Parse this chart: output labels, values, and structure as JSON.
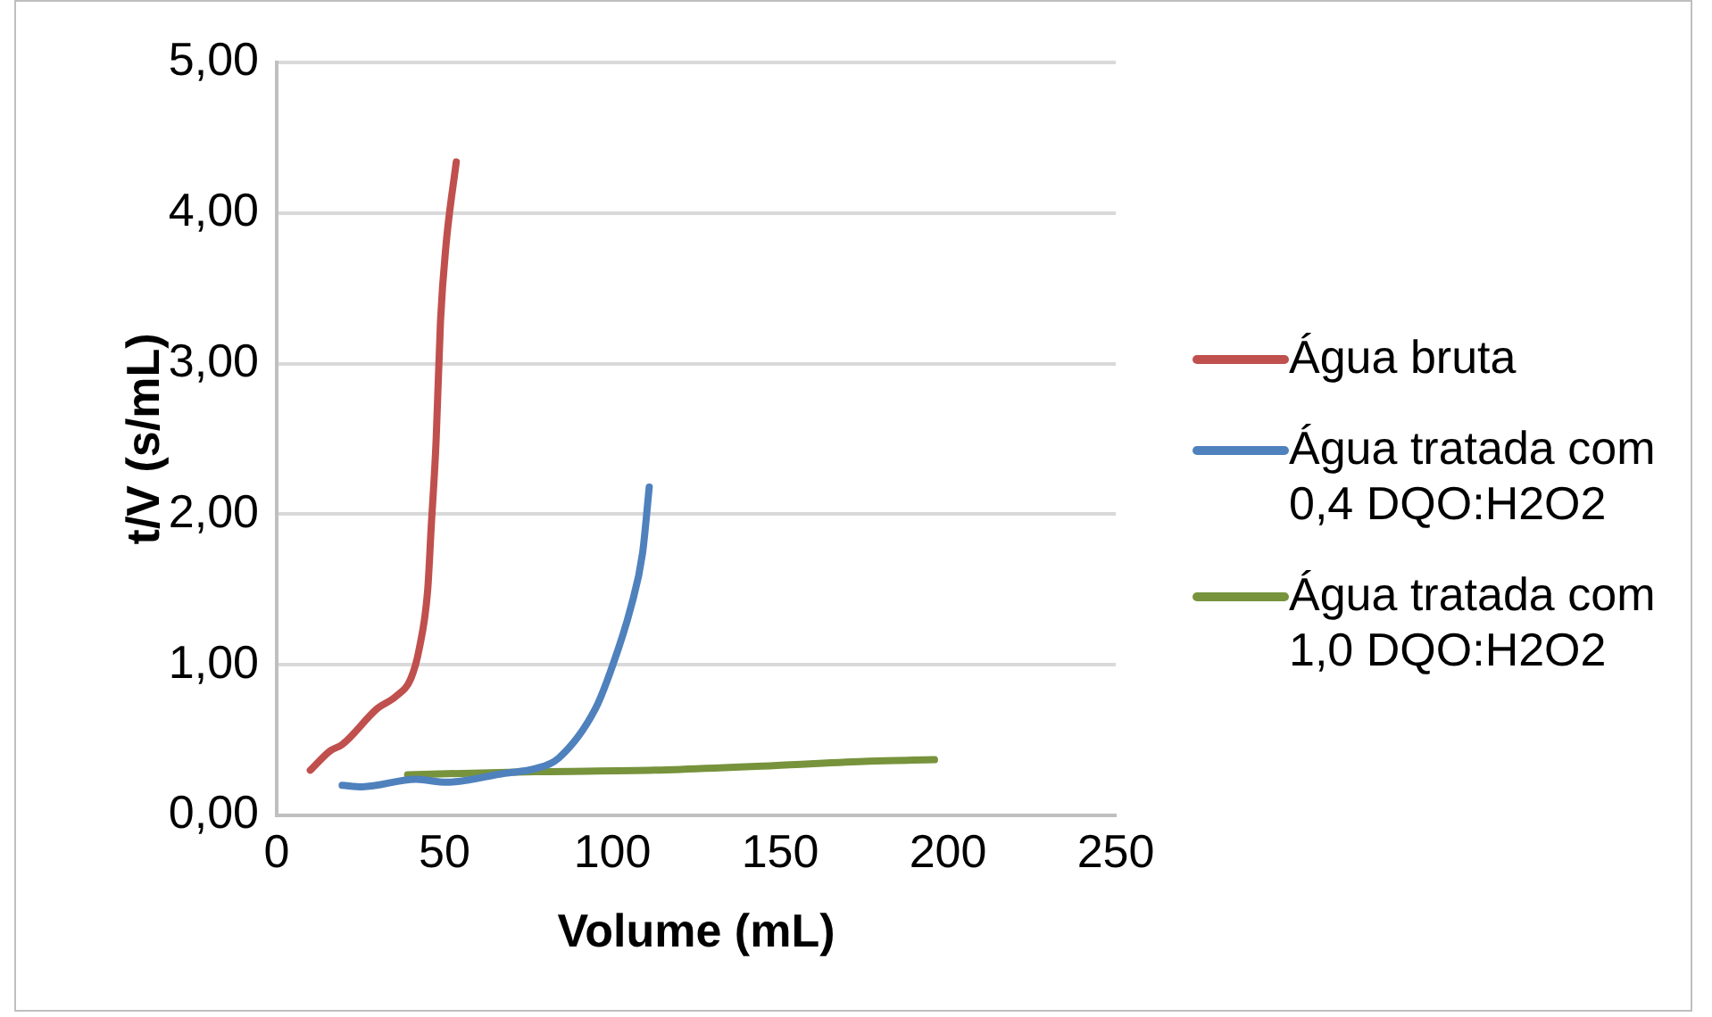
{
  "chart_data": {
    "type": "line",
    "xlabel": "Volume (mL)",
    "ylabel": "t/V (s/mL)",
    "xlim": [
      0,
      250
    ],
    "xticks": [
      0,
      50,
      100,
      150,
      200,
      250
    ],
    "ylim": [
      0,
      5
    ],
    "yticks": [
      {
        "value": 0,
        "label": "0,00"
      },
      {
        "value": 1,
        "label": "1,00"
      },
      {
        "value": 2,
        "label": "2,00"
      },
      {
        "value": 3,
        "label": "3,00"
      },
      {
        "value": 4,
        "label": "4,00"
      },
      {
        "value": 5,
        "label": "5,00"
      }
    ],
    "grid": "y",
    "legend": "right",
    "marker": "none",
    "line_style": "solid",
    "series": [
      {
        "name": "Água bruta",
        "color": "#c0504d",
        "x": [
          10,
          16,
          19.5,
          30,
          35.5,
          40,
          42.5,
          45,
          46,
          47.5,
          48.8,
          50.5,
          53.5
        ],
        "values": [
          0.3,
          0.43,
          0.47,
          0.71,
          0.79,
          0.91,
          1.11,
          1.5,
          1.9,
          2.49,
          3.28,
          3.8,
          4.34
        ]
      },
      {
        "name": "Água tratada com 0,4 DQO:H2O2",
        "color": "#4f81bd",
        "x": [
          19.5,
          25.5,
          41.5,
          50.5,
          68,
          77,
          84,
          95,
          100,
          105.5,
          109,
          111
        ],
        "values": [
          0.2,
          0.19,
          0.24,
          0.22,
          0.28,
          0.31,
          0.38,
          0.71,
          0.99,
          1.38,
          1.74,
          2.18
        ]
      },
      {
        "name": "Água tratada com 1,0 DQO:H2O2",
        "color": "#77933c",
        "x": [
          39,
          77,
          112.5,
          148,
          176.5,
          196
        ],
        "values": [
          0.27,
          0.29,
          0.3,
          0.33,
          0.36,
          0.37
        ]
      }
    ]
  }
}
